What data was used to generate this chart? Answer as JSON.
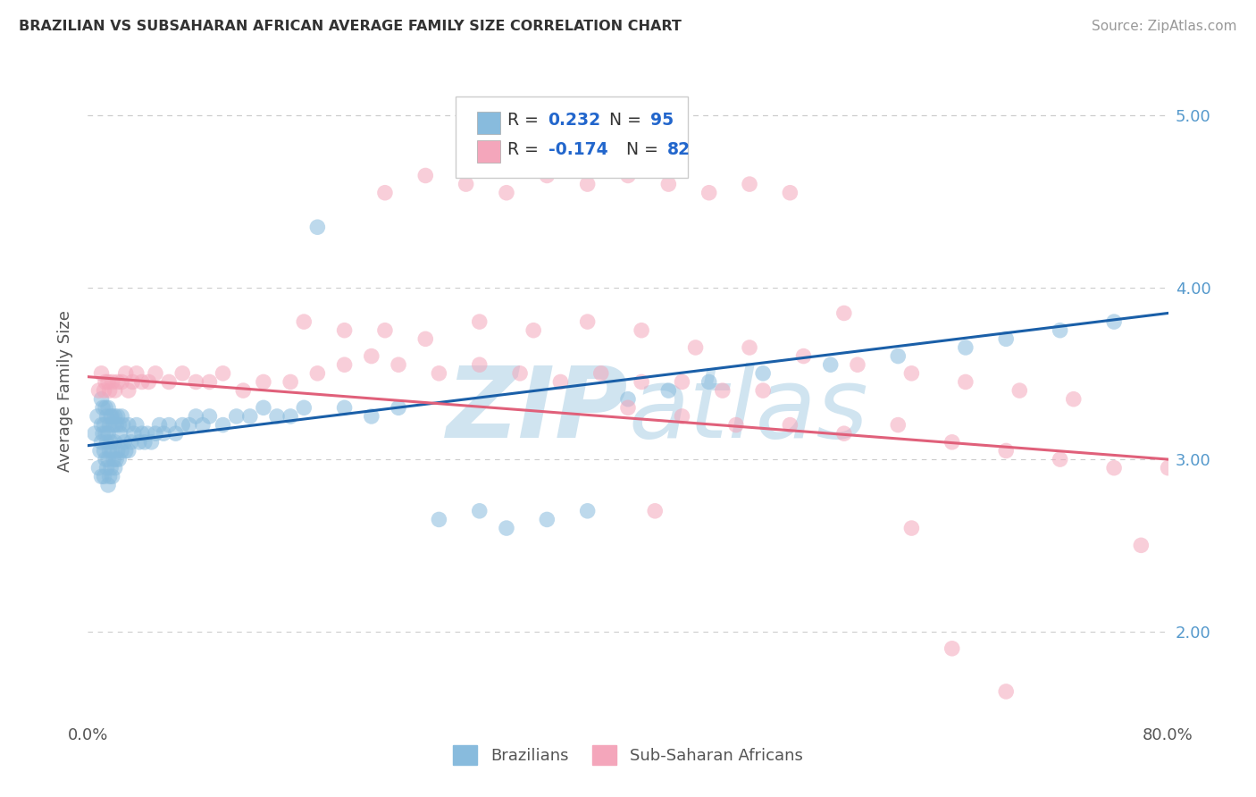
{
  "title": "BRAZILIAN VS SUBSAHARAN AFRICAN AVERAGE FAMILY SIZE CORRELATION CHART",
  "source": "Source: ZipAtlas.com",
  "ylabel": "Average Family Size",
  "xlim": [
    0.0,
    0.8
  ],
  "ylim": [
    1.5,
    5.3
  ],
  "yticks": [
    2.0,
    3.0,
    4.0,
    5.0
  ],
  "blue_color": "#88bbdd",
  "pink_color": "#f4a6bb",
  "blue_line_color": "#1a5fa8",
  "pink_line_color": "#e0607a",
  "watermark_color": "#d0e4f0",
  "background_color": "#ffffff",
  "grid_color": "#cccccc",
  "title_color": "#333333",
  "source_color": "#999999",
  "right_tick_color": "#5599cc",
  "blue_trend_x0": 0.0,
  "blue_trend_y0": 3.08,
  "blue_trend_x1": 0.8,
  "blue_trend_y1": 3.85,
  "pink_trend_x0": 0.0,
  "pink_trend_y0": 3.48,
  "pink_trend_x1": 0.8,
  "pink_trend_y1": 3.0,
  "blue_x": [
    0.005,
    0.007,
    0.008,
    0.009,
    0.01,
    0.01,
    0.01,
    0.01,
    0.011,
    0.011,
    0.012,
    0.012,
    0.012,
    0.013,
    0.013,
    0.013,
    0.014,
    0.014,
    0.014,
    0.015,
    0.015,
    0.015,
    0.015,
    0.016,
    0.016,
    0.016,
    0.017,
    0.017,
    0.017,
    0.018,
    0.018,
    0.018,
    0.019,
    0.019,
    0.02,
    0.02,
    0.02,
    0.021,
    0.021,
    0.022,
    0.022,
    0.023,
    0.023,
    0.024,
    0.025,
    0.025,
    0.026,
    0.027,
    0.028,
    0.03,
    0.03,
    0.032,
    0.034,
    0.036,
    0.038,
    0.04,
    0.042,
    0.044,
    0.047,
    0.05,
    0.053,
    0.056,
    0.06,
    0.065,
    0.07,
    0.075,
    0.08,
    0.085,
    0.09,
    0.1,
    0.11,
    0.12,
    0.13,
    0.14,
    0.15,
    0.16,
    0.17,
    0.19,
    0.21,
    0.23,
    0.26,
    0.29,
    0.31,
    0.34,
    0.37,
    0.4,
    0.43,
    0.46,
    0.5,
    0.55,
    0.6,
    0.65,
    0.68,
    0.72,
    0.76
  ],
  "blue_y": [
    3.15,
    3.25,
    2.95,
    3.05,
    3.2,
    3.35,
    3.1,
    2.9,
    3.3,
    3.15,
    3.2,
    3.05,
    2.9,
    3.3,
    3.15,
    3.0,
    3.25,
    3.1,
    2.95,
    3.3,
    3.15,
    3.0,
    2.85,
    3.2,
    3.05,
    2.9,
    3.25,
    3.1,
    2.95,
    3.25,
    3.05,
    2.9,
    3.2,
    3.0,
    3.25,
    3.1,
    2.95,
    3.2,
    3.0,
    3.25,
    3.05,
    3.2,
    3.0,
    3.15,
    3.25,
    3.05,
    3.2,
    3.1,
    3.05,
    3.2,
    3.05,
    3.1,
    3.15,
    3.2,
    3.1,
    3.15,
    3.1,
    3.15,
    3.1,
    3.15,
    3.2,
    3.15,
    3.2,
    3.15,
    3.2,
    3.2,
    3.25,
    3.2,
    3.25,
    3.2,
    3.25,
    3.25,
    3.3,
    3.25,
    3.25,
    3.3,
    4.35,
    3.3,
    3.25,
    3.3,
    2.65,
    2.7,
    2.6,
    2.65,
    2.7,
    3.35,
    3.4,
    3.45,
    3.5,
    3.55,
    3.6,
    3.65,
    3.7,
    3.75,
    3.8
  ],
  "pink_x": [
    0.008,
    0.01,
    0.012,
    0.013,
    0.015,
    0.016,
    0.018,
    0.02,
    0.022,
    0.025,
    0.028,
    0.03,
    0.033,
    0.036,
    0.04,
    0.045,
    0.05,
    0.06,
    0.07,
    0.08,
    0.09,
    0.1,
    0.115,
    0.13,
    0.15,
    0.17,
    0.19,
    0.21,
    0.23,
    0.26,
    0.29,
    0.32,
    0.35,
    0.38,
    0.41,
    0.44,
    0.47,
    0.5,
    0.22,
    0.25,
    0.28,
    0.31,
    0.34,
    0.37,
    0.4,
    0.43,
    0.46,
    0.49,
    0.52,
    0.56,
    0.16,
    0.19,
    0.22,
    0.25,
    0.29,
    0.33,
    0.37,
    0.41,
    0.45,
    0.49,
    0.53,
    0.57,
    0.61,
    0.65,
    0.69,
    0.73,
    0.4,
    0.44,
    0.48,
    0.52,
    0.56,
    0.6,
    0.64,
    0.68,
    0.72,
    0.76,
    0.42,
    0.61,
    0.78,
    0.8,
    0.64,
    0.68
  ],
  "pink_y": [
    3.4,
    3.5,
    3.4,
    3.45,
    3.45,
    3.4,
    3.45,
    3.4,
    3.45,
    3.45,
    3.5,
    3.4,
    3.45,
    3.5,
    3.45,
    3.45,
    3.5,
    3.45,
    3.5,
    3.45,
    3.45,
    3.5,
    3.4,
    3.45,
    3.45,
    3.5,
    3.55,
    3.6,
    3.55,
    3.5,
    3.55,
    3.5,
    3.45,
    3.5,
    3.45,
    3.45,
    3.4,
    3.4,
    4.55,
    4.65,
    4.6,
    4.55,
    4.65,
    4.6,
    4.65,
    4.6,
    4.55,
    4.6,
    4.55,
    3.85,
    3.8,
    3.75,
    3.75,
    3.7,
    3.8,
    3.75,
    3.8,
    3.75,
    3.65,
    3.65,
    3.6,
    3.55,
    3.5,
    3.45,
    3.4,
    3.35,
    3.3,
    3.25,
    3.2,
    3.2,
    3.15,
    3.2,
    3.1,
    3.05,
    3.0,
    2.95,
    2.7,
    2.6,
    2.5,
    2.95,
    1.9,
    1.65
  ]
}
